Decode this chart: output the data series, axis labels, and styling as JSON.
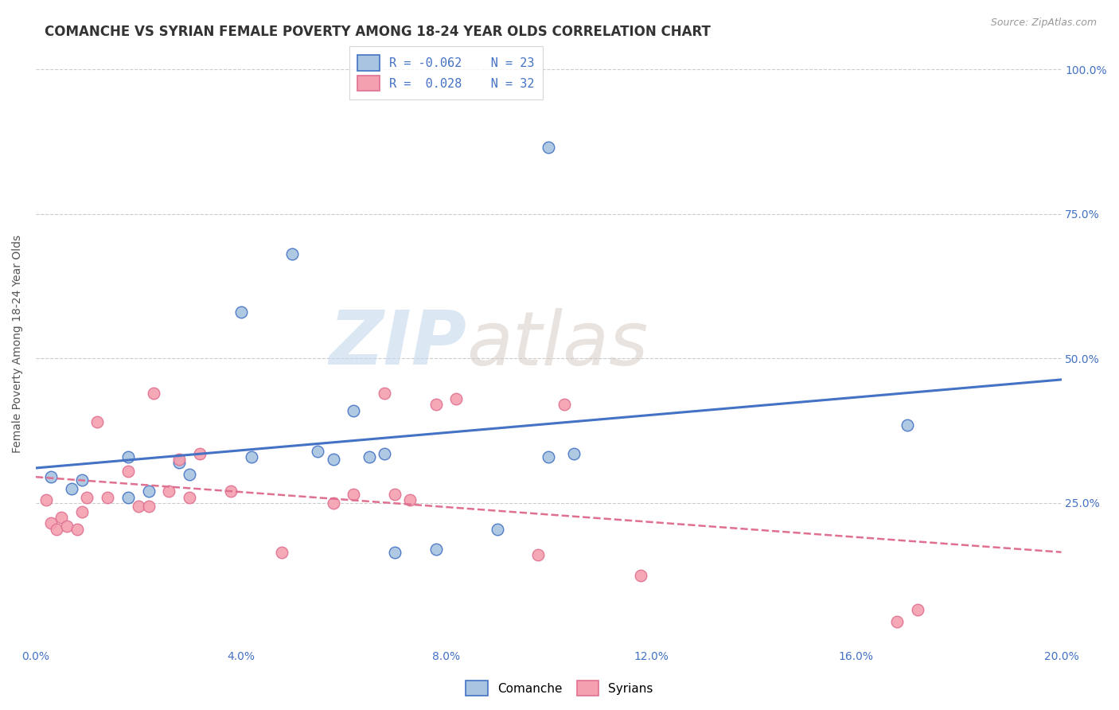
{
  "title": "COMANCHE VS SYRIAN FEMALE POVERTY AMONG 18-24 YEAR OLDS CORRELATION CHART",
  "source": "Source: ZipAtlas.com",
  "ylabel": "Female Poverty Among 18-24 Year Olds",
  "xmin": 0.0,
  "xmax": 0.2,
  "ymin": 0.0,
  "ymax": 1.05,
  "yticks": [
    0.0,
    0.25,
    0.5,
    0.75,
    1.0
  ],
  "right_ytick_labels": [
    "",
    "25.0%",
    "50.0%",
    "75.0%",
    "100.0%"
  ],
  "comanche_color": "#a8c4e0",
  "syrian_color": "#f4a0b0",
  "comanche_line_color": "#4472c4",
  "syrian_line_color": "#e07090",
  "watermark_zip": "ZIP",
  "watermark_atlas": "atlas",
  "comanche_x": [
    0.003,
    0.007,
    0.009,
    0.018,
    0.018,
    0.022,
    0.028,
    0.03,
    0.04,
    0.042,
    0.05,
    0.055,
    0.058,
    0.062,
    0.065,
    0.068,
    0.07,
    0.078,
    0.09,
    0.1,
    0.1,
    0.105,
    0.17
  ],
  "comanche_y": [
    0.295,
    0.275,
    0.29,
    0.33,
    0.26,
    0.27,
    0.32,
    0.3,
    0.58,
    0.33,
    0.68,
    0.34,
    0.325,
    0.41,
    0.33,
    0.335,
    0.165,
    0.17,
    0.205,
    0.33,
    0.865,
    0.335,
    0.385
  ],
  "syrian_x": [
    0.002,
    0.003,
    0.004,
    0.005,
    0.006,
    0.008,
    0.009,
    0.01,
    0.012,
    0.014,
    0.018,
    0.02,
    0.022,
    0.023,
    0.026,
    0.028,
    0.03,
    0.032,
    0.038,
    0.048,
    0.058,
    0.062,
    0.068,
    0.07,
    0.073,
    0.078,
    0.082,
    0.098,
    0.103,
    0.118,
    0.168,
    0.172
  ],
  "syrian_y": [
    0.255,
    0.215,
    0.205,
    0.225,
    0.21,
    0.205,
    0.235,
    0.26,
    0.39,
    0.26,
    0.305,
    0.245,
    0.245,
    0.44,
    0.27,
    0.325,
    0.26,
    0.335,
    0.27,
    0.165,
    0.25,
    0.265,
    0.44,
    0.265,
    0.255,
    0.42,
    0.43,
    0.16,
    0.42,
    0.125,
    0.045,
    0.065
  ],
  "background_color": "#ffffff",
  "grid_color": "#cccccc",
  "title_fontsize": 12,
  "axis_fontsize": 10,
  "tick_fontsize": 10
}
